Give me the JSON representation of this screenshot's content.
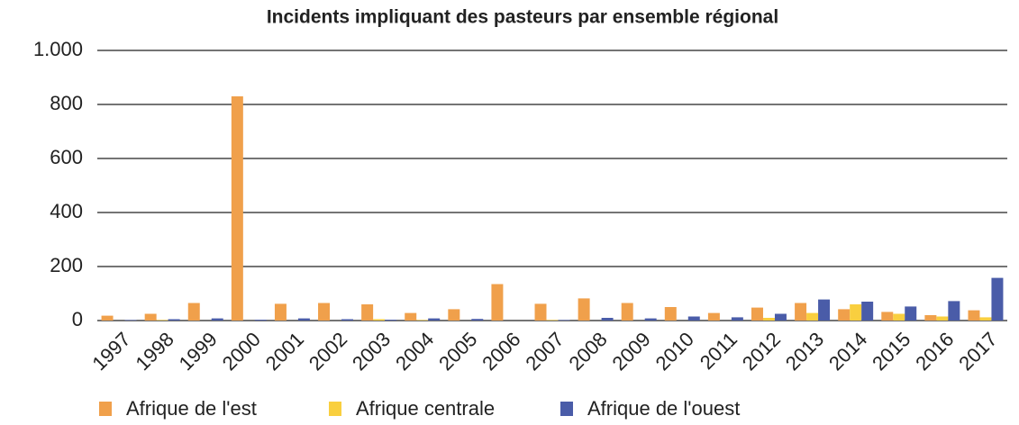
{
  "chart_data": {
    "type": "bar",
    "title": "Incidents impliquant des pasteurs par ensemble régional",
    "categories": [
      "1997",
      "1998",
      "1999",
      "2000",
      "2001",
      "2002",
      "2003",
      "2004",
      "2005",
      "2006",
      "2007",
      "2008",
      "2009",
      "2010",
      "2011",
      "2012",
      "2013",
      "2014",
      "2015",
      "2016",
      "2017"
    ],
    "series": [
      {
        "name": "Afrique de l'est",
        "color": "#f0a04b",
        "values": [
          18,
          25,
          65,
          830,
          62,
          65,
          60,
          28,
          42,
          135,
          62,
          82,
          65,
          50,
          28,
          48,
          65,
          42,
          32,
          20,
          38
        ]
      },
      {
        "name": "Afrique centrale",
        "color": "#f9cf3f",
        "values": [
          0,
          2,
          0,
          0,
          0,
          0,
          5,
          2,
          0,
          0,
          2,
          0,
          0,
          0,
          0,
          10,
          28,
          60,
          25,
          15,
          12
        ]
      },
      {
        "name": "Afrique de l'ouest",
        "color": "#4a5ca8",
        "values": [
          2,
          5,
          8,
          3,
          8,
          5,
          3,
          8,
          6,
          0,
          2,
          10,
          8,
          15,
          12,
          25,
          78,
          70,
          52,
          72,
          158
        ]
      }
    ],
    "ylim": [
      0,
      1000
    ],
    "yticks": [
      0,
      200,
      400,
      600,
      800,
      {
        "value": 1000,
        "label": "1.000"
      }
    ],
    "grid": true,
    "legend": "bottom"
  }
}
